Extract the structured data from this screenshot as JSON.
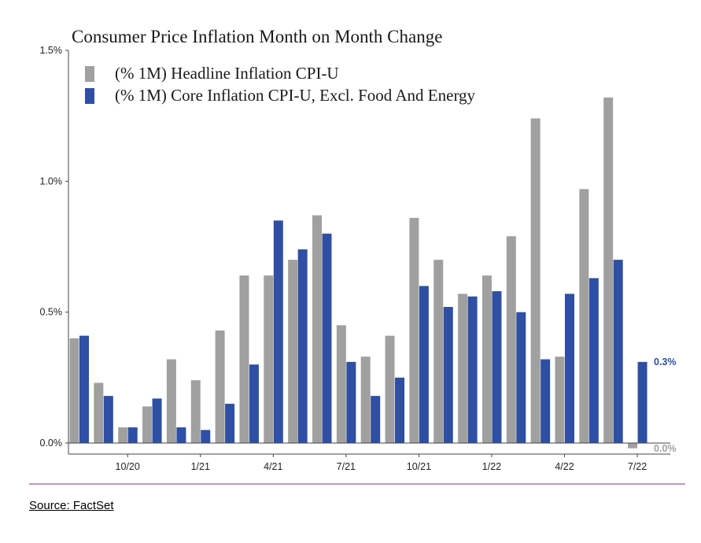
{
  "colors": {
    "headline": "#a0a0a0",
    "core": "#2e4fa3",
    "divider": "#8a2d8a"
  },
  "source_text": "Source: FactSet",
  "chart_data": {
    "type": "bar",
    "title": "Consumer Price Inflation Month on Month Change",
    "xlabel": "",
    "ylabel": "",
    "ylim": [
      0,
      1.5
    ],
    "yticks": [
      "0.0%",
      "0.5%",
      "1.0%",
      "1.5%"
    ],
    "ytick_values": [
      0,
      0.5,
      1.0,
      1.5
    ],
    "xtick_labels": [
      "10/20",
      "1/21",
      "4/21",
      "7/21",
      "10/21",
      "1/22",
      "4/22",
      "7/22"
    ],
    "xtick_indices": [
      2,
      5,
      8,
      11,
      14,
      17,
      20,
      23
    ],
    "categories": [
      "08/20",
      "09/20",
      "10/20",
      "11/20",
      "12/20",
      "01/21",
      "02/21",
      "03/21",
      "04/21",
      "05/21",
      "06/21",
      "07/21",
      "08/21",
      "09/21",
      "10/21",
      "11/21",
      "12/21",
      "01/22",
      "02/22",
      "03/22",
      "04/22",
      "05/22",
      "06/22",
      "07/22"
    ],
    "grid": false,
    "legend_position": "top-left",
    "series": [
      {
        "name": "(% 1M) Headline Inflation CPI-U",
        "values": [
          0.4,
          0.23,
          0.06,
          0.14,
          0.32,
          0.24,
          0.43,
          0.64,
          0.64,
          0.7,
          0.87,
          0.45,
          0.33,
          0.41,
          0.86,
          0.7,
          0.57,
          0.64,
          0.79,
          1.24,
          0.33,
          0.97,
          1.32,
          -0.02
        ]
      },
      {
        "name": "(% 1M) Core Inflation CPI-U, Excl. Food And Energy",
        "values": [
          0.41,
          0.18,
          0.06,
          0.17,
          0.06,
          0.05,
          0.15,
          0.3,
          0.85,
          0.74,
          0.8,
          0.31,
          0.18,
          0.25,
          0.6,
          0.52,
          0.56,
          0.58,
          0.5,
          0.32,
          0.57,
          0.63,
          0.7,
          0.31
        ]
      }
    ],
    "end_labels": {
      "core": "0.3%",
      "headline": "0.0%"
    }
  }
}
